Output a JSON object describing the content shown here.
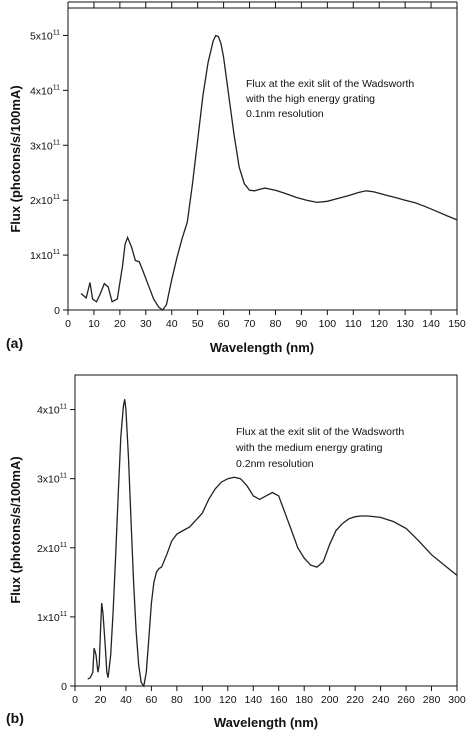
{
  "chart_data": [
    {
      "type": "line",
      "panel_label": "(a)",
      "xlabel": "Wavelength (nm)",
      "ylabel": "Flux (photons/s/100mA)",
      "xlim": [
        0,
        150
      ],
      "ylim": [
        0,
        5.5
      ],
      "xticks": [
        0,
        10,
        20,
        30,
        40,
        50,
        60,
        70,
        80,
        90,
        100,
        110,
        120,
        130,
        140,
        150
      ],
      "xtick_labels": [
        "0",
        "10",
        "20",
        "30",
        "40",
        "50",
        "60",
        "70",
        "80",
        "90",
        "100",
        "110",
        "120",
        "130",
        "140",
        "150"
      ],
      "yticks": [
        0,
        1,
        2,
        3,
        4,
        5
      ],
      "ytick_labels": [
        {
          "base": "0",
          "exp": ""
        },
        {
          "base": "1x10",
          "exp": "11"
        },
        {
          "base": "2x10",
          "exp": "11"
        },
        {
          "base": "3x10",
          "exp": "11"
        },
        {
          "base": "4x10",
          "exp": "11"
        },
        {
          "base": "5x10",
          "exp": "11"
        }
      ],
      "annotation": [
        "Flux at the exit slit of the Wadsworth",
        "with the high energy grating",
        "0.1nm resolution"
      ],
      "grid": false,
      "series": [
        {
          "x": [
            5,
            7,
            8.5,
            9.5,
            11,
            12.5,
            14,
            15.5,
            17,
            19,
            21,
            22,
            23,
            24.5,
            26,
            27.5,
            29,
            31,
            33,
            35,
            36.5,
            38,
            40,
            42,
            44,
            46,
            48,
            50,
            52,
            54,
            56,
            57,
            58,
            59,
            60,
            62,
            64,
            66,
            68,
            70,
            72,
            74,
            76,
            78,
            80,
            84,
            88,
            92,
            96,
            100,
            104,
            108,
            112,
            115,
            118,
            122,
            126,
            130,
            134,
            138,
            142,
            146,
            150
          ],
          "y": [
            0.3,
            0.22,
            0.5,
            0.2,
            0.15,
            0.3,
            0.48,
            0.42,
            0.15,
            0.2,
            0.8,
            1.2,
            1.32,
            1.15,
            0.9,
            0.88,
            0.7,
            0.45,
            0.2,
            0.05,
            0.0,
            0.1,
            0.55,
            0.95,
            1.3,
            1.6,
            2.3,
            3.1,
            3.9,
            4.5,
            4.9,
            5.0,
            4.98,
            4.85,
            4.6,
            3.9,
            3.2,
            2.6,
            2.3,
            2.18,
            2.17,
            2.2,
            2.22,
            2.2,
            2.18,
            2.12,
            2.05,
            2.0,
            1.96,
            1.98,
            2.03,
            2.08,
            2.14,
            2.17,
            2.15,
            2.1,
            2.05,
            2.0,
            1.95,
            1.88,
            1.8,
            1.72,
            1.64
          ]
        }
      ]
    },
    {
      "type": "line",
      "panel_label": "(b)",
      "xlabel": "Wavelength (nm)",
      "ylabel": "Flux (photons/s/100mA)",
      "xlim": [
        0,
        300
      ],
      "ylim": [
        0,
        4.5
      ],
      "xticks": [
        0,
        20,
        40,
        60,
        80,
        100,
        120,
        140,
        160,
        180,
        200,
        220,
        240,
        260,
        280,
        300
      ],
      "xtick_labels": [
        "0",
        "20",
        "40",
        "60",
        "80",
        "100",
        "120",
        "140",
        "160",
        "180",
        "200",
        "220",
        "240",
        "260",
        "280",
        "300"
      ],
      "yticks": [
        0,
        1,
        2,
        3,
        4
      ],
      "ytick_labels": [
        {
          "base": "0",
          "exp": ""
        },
        {
          "base": "1x10",
          "exp": "11"
        },
        {
          "base": "2x10",
          "exp": "11"
        },
        {
          "base": "3x10",
          "exp": "11"
        },
        {
          "base": "4x10",
          "exp": "11"
        }
      ],
      "annotation": [
        "Flux at the exit slit of the Wadsworth",
        "with the medium energy grating",
        "0.2nm resolution"
      ],
      "grid": false,
      "series": [
        {
          "x": [
            10,
            12,
            14,
            15,
            16.5,
            18,
            19,
            20,
            21,
            22,
            24,
            25,
            26,
            28,
            30,
            32,
            34,
            36,
            38,
            39,
            40,
            42,
            44,
            46,
            48,
            50,
            52,
            54,
            56,
            58,
            60,
            62,
            64,
            66,
            68,
            72,
            76,
            80,
            85,
            90,
            95,
            100,
            105,
            110,
            115,
            120,
            125,
            130,
            135,
            140,
            145,
            150,
            155,
            160,
            165,
            170,
            175,
            180,
            185,
            190,
            195,
            200,
            205,
            210,
            215,
            220,
            225,
            230,
            240,
            250,
            260,
            270,
            280,
            290,
            300
          ],
          "y": [
            0.1,
            0.12,
            0.2,
            0.55,
            0.45,
            0.2,
            0.3,
            0.8,
            1.2,
            1.05,
            0.5,
            0.2,
            0.12,
            0.45,
            1.1,
            1.9,
            2.8,
            3.6,
            4.05,
            4.15,
            4.0,
            3.3,
            2.4,
            1.5,
            0.8,
            0.3,
            0.05,
            0.0,
            0.2,
            0.7,
            1.2,
            1.5,
            1.65,
            1.7,
            1.72,
            1.9,
            2.1,
            2.2,
            2.25,
            2.3,
            2.4,
            2.5,
            2.7,
            2.85,
            2.95,
            3.0,
            3.02,
            3.0,
            2.9,
            2.75,
            2.7,
            2.75,
            2.8,
            2.75,
            2.5,
            2.25,
            2.0,
            1.85,
            1.75,
            1.72,
            1.8,
            2.05,
            2.25,
            2.35,
            2.42,
            2.45,
            2.46,
            2.46,
            2.44,
            2.38,
            2.28,
            2.1,
            1.9,
            1.75,
            1.6
          ]
        }
      ]
    }
  ]
}
